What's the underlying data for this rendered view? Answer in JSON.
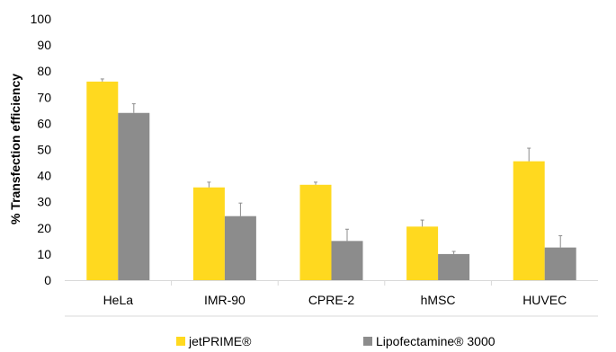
{
  "chart_data": {
    "type": "bar",
    "title": "",
    "xlabel": "",
    "ylabel": "% Transfection efficiency",
    "ylim": [
      0,
      100
    ],
    "yticks": [
      0,
      10,
      20,
      30,
      40,
      50,
      60,
      70,
      80,
      90,
      100
    ],
    "categories": [
      "HeLa",
      "IMR-90",
      "CPRE-2",
      "hMSC",
      "HUVEC"
    ],
    "series": [
      {
        "name": "jetPRIME®",
        "color": "#ffd91f",
        "values": [
          76,
          35.5,
          36.5,
          20.5,
          45.5
        ],
        "errors": [
          1,
          2,
          1,
          2.5,
          5
        ]
      },
      {
        "name": "Lipofectamine® 3000",
        "color": "#8c8c8c",
        "values": [
          64,
          24.5,
          15,
          10,
          12.5
        ],
        "errors": [
          3.5,
          5,
          4.5,
          1,
          4.5
        ]
      }
    ],
    "grid": false,
    "legend_position": "bottom"
  }
}
